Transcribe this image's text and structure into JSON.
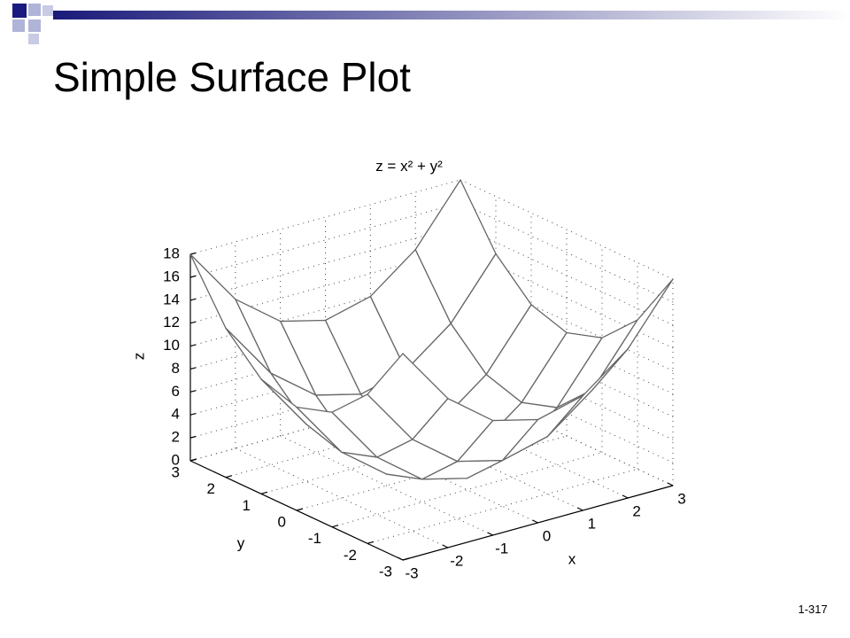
{
  "slide": {
    "title": "Simple Surface Plot",
    "page": "1-317"
  },
  "chart_data": {
    "type": "surface",
    "title": "z = x² + y²",
    "x_label": "x",
    "y_label": "y",
    "z_label": "z",
    "x": [
      -3,
      -2,
      -1,
      0,
      1,
      2,
      3
    ],
    "y": [
      -3,
      -2,
      -1,
      0,
      1,
      2,
      3
    ],
    "z": [
      [
        18,
        13,
        10,
        9,
        10,
        13,
        18
      ],
      [
        13,
        8,
        5,
        4,
        5,
        8,
        13
      ],
      [
        10,
        5,
        2,
        1,
        2,
        5,
        10
      ],
      [
        9,
        4,
        1,
        0,
        1,
        4,
        9
      ],
      [
        10,
        5,
        2,
        1,
        2,
        5,
        10
      ],
      [
        13,
        8,
        5,
        4,
        5,
        8,
        13
      ],
      [
        18,
        13,
        10,
        9,
        10,
        13,
        18
      ]
    ],
    "xlim": [
      -3,
      3
    ],
    "ylim": [
      -3,
      3
    ],
    "zlim": [
      0,
      18
    ],
    "xticks": [
      -3,
      -2,
      -1,
      0,
      1,
      2,
      3
    ],
    "yticks": [
      -3,
      -2,
      -1,
      0,
      1,
      2,
      3
    ],
    "zticks": [
      0,
      2,
      4,
      6,
      8,
      10,
      12,
      14,
      16,
      18
    ],
    "grid": true,
    "color": "#ffffff",
    "edge_color": "#666666"
  }
}
